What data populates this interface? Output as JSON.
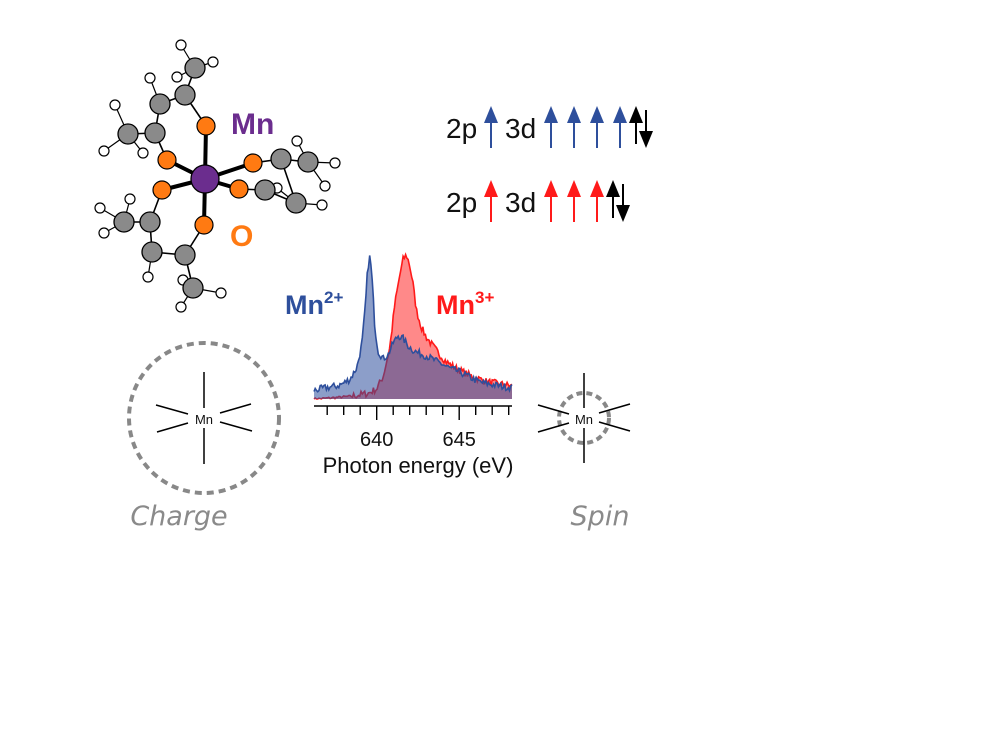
{
  "molecule": {
    "metal_label": "Mn",
    "oxygen_label": "O"
  },
  "configs": [
    {
      "core_label": "2p",
      "valence_label": "3d",
      "color": "#2e4f9c",
      "up_arrows": 4
    },
    {
      "core_label": "2p",
      "valence_label": "3d",
      "color": "#ff1a1a",
      "up_arrows": 3
    }
  ],
  "spectrum": {
    "label_mn2": {
      "base": "Mn",
      "charge": "2+",
      "color": "#2e4f9c"
    },
    "label_mn3": {
      "base": "Mn",
      "charge": "3+",
      "color": "#ff1a1a"
    },
    "xlabel": "Photon energy (eV)",
    "ticks": [
      "640",
      "645"
    ]
  },
  "chart_data": {
    "type": "area",
    "title": "",
    "xlabel": "Photon energy (eV)",
    "ylabel": "",
    "xlim": [
      636.2,
      648.2
    ],
    "ylim": [
      0,
      1
    ],
    "tick_labels": [
      640,
      645
    ],
    "series": [
      {
        "name": "Mn2+",
        "color": "#2e4f9c",
        "x": [
          636.2,
          637.0,
          637.6,
          638.0,
          638.4,
          638.8,
          639.1,
          639.3,
          639.45,
          639.6,
          639.75,
          639.9,
          640.1,
          640.4,
          640.7,
          641.0,
          641.3,
          641.6,
          641.9,
          642.2,
          642.5,
          643.0,
          643.5,
          644.0,
          644.5,
          645.0,
          645.5,
          646.0,
          646.5,
          647.0,
          647.5,
          648.2
        ],
        "y": [
          0.06,
          0.08,
          0.09,
          0.11,
          0.14,
          0.22,
          0.38,
          0.62,
          0.9,
          1.0,
          0.78,
          0.48,
          0.33,
          0.28,
          0.31,
          0.39,
          0.44,
          0.42,
          0.37,
          0.34,
          0.32,
          0.3,
          0.27,
          0.24,
          0.21,
          0.19,
          0.16,
          0.13,
          0.11,
          0.1,
          0.09,
          0.08
        ]
      },
      {
        "name": "Mn3+",
        "color": "#ff1a1a",
        "x": [
          636.2,
          637.5,
          638.5,
          639.5,
          640.0,
          640.4,
          640.8,
          641.1,
          641.4,
          641.6,
          641.8,
          642.0,
          642.2,
          642.4,
          642.7,
          643.0,
          643.4,
          643.8,
          644.2,
          644.7,
          645.2,
          645.7,
          646.2,
          646.7,
          647.2,
          648.2
        ],
        "y": [
          0.0,
          0.01,
          0.02,
          0.04,
          0.07,
          0.16,
          0.36,
          0.66,
          0.86,
          0.97,
          1.0,
          0.93,
          0.8,
          0.62,
          0.5,
          0.43,
          0.37,
          0.31,
          0.26,
          0.22,
          0.19,
          0.16,
          0.14,
          0.12,
          0.11,
          0.09
        ]
      }
    ]
  },
  "captions": {
    "charge": "Charge",
    "spin": "Spin"
  },
  "charge_icon": {
    "center_label": "Mn"
  },
  "spin_icon": {
    "center_label": "Mn"
  }
}
